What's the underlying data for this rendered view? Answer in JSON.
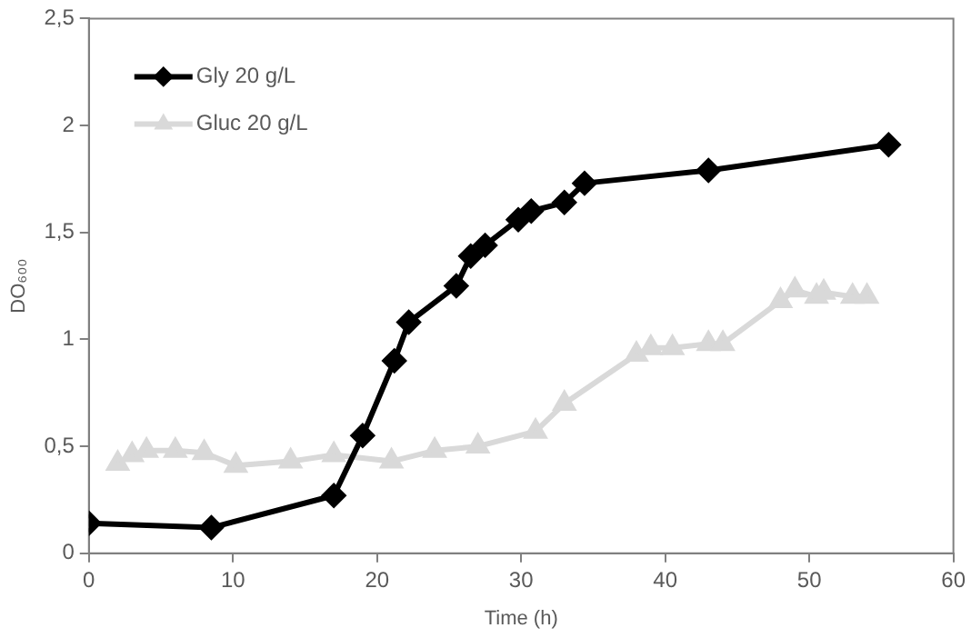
{
  "chart_data": {
    "type": "line",
    "xlabel": "Time (h)",
    "ylabel": "DO₆₀₀",
    "xlim": [
      0,
      60
    ],
    "xticks": [
      0,
      10,
      20,
      30,
      40,
      50,
      60
    ],
    "ylim": [
      0,
      2.5
    ],
    "yticks": [
      0,
      {
        "value": 0.5,
        "label": "0,5"
      },
      1,
      {
        "value": 1.5,
        "label": "1,5"
      },
      2,
      {
        "value": 2.5,
        "label": "2,5"
      }
    ],
    "grid": false,
    "legend": "top left",
    "line_style": "solid",
    "series": [
      {
        "name": "Gly 20 g/L",
        "color": "#000000",
        "marker": "diamond",
        "x": [
          0,
          8.5,
          17,
          19,
          21.2,
          22.2,
          25.5,
          26.5,
          27.5,
          29.8,
          30.7,
          33,
          34.4,
          43,
          55.5
        ],
        "values": [
          0.14,
          0.12,
          0.27,
          0.55,
          0.9,
          1.08,
          1.25,
          1.39,
          1.44,
          1.56,
          1.6,
          1.64,
          1.73,
          1.79,
          1.91
        ]
      },
      {
        "name": "Gluc 20 g/L",
        "color": "#d9d9d9",
        "marker": "triangle",
        "x": [
          2,
          3,
          4,
          6,
          8,
          10.2,
          14,
          17,
          21,
          24,
          27,
          31,
          33,
          38,
          39,
          40.5,
          43,
          44,
          48,
          49,
          50.5,
          51,
          53,
          54
        ],
        "values": [
          0.42,
          0.46,
          0.48,
          0.48,
          0.47,
          0.41,
          0.43,
          0.46,
          0.43,
          0.48,
          0.5,
          0.57,
          0.7,
          0.93,
          0.96,
          0.96,
          0.98,
          0.98,
          1.18,
          1.23,
          1.2,
          1.22,
          1.2,
          1.2
        ]
      }
    ]
  }
}
